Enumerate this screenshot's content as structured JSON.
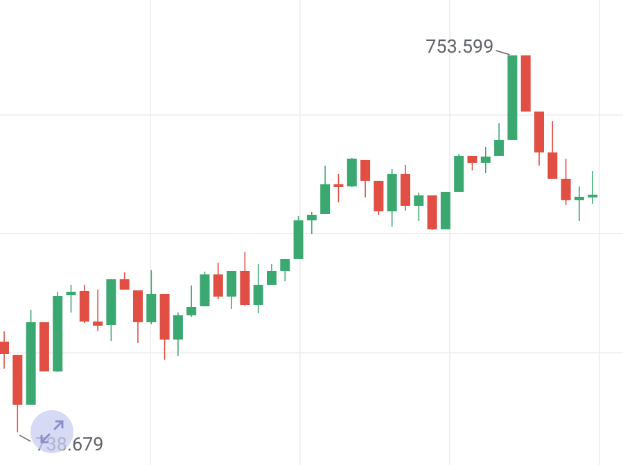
{
  "chart_data": {
    "type": "candlestick",
    "open": [
      742.272,
      741.751,
      739.776,
      743.04,
      741.092,
      744.109,
      744.274,
      743.067,
      742.93,
      744.74,
      744.301,
      743.04,
      744.164,
      742.354,
      743.314,
      743.67,
      744.932,
      744.054,
      745.069,
      743.725,
      744.521,
      745.069,
      745.535,
      747.071,
      747.318,
      748.498,
      748.415,
      749.458,
      748.635,
      747.428,
      748.909,
      747.647,
      748.059,
      746.715,
      748.196,
      749.622,
      749.348,
      749.622,
      750.253,
      753.599,
      751.377,
      749.759,
      748.717,
      747.867,
      747.977
    ],
    "high": [
      742.683,
      741.751,
      743.533,
      743.04,
      744.246,
      744.521,
      744.521,
      744.329,
      744.74,
      745.014,
      744.301,
      745.097,
      744.164,
      743.424,
      744.493,
      745.042,
      745.398,
      745.069,
      745.81,
      745.344,
      745.344,
      745.535,
      747.236,
      747.401,
      749.238,
      748.909,
      749.54,
      749.458,
      748.635,
      749.101,
      749.266,
      748.169,
      748.059,
      748.196,
      749.704,
      749.622,
      749.979,
      750.911,
      753.599,
      753.599,
      751.377,
      750.993,
      749.512,
      748.415,
      749.019
    ],
    "low": [
      741.202,
      738.679,
      739.776,
      741.092,
      741.065,
      743.424,
      743.012,
      742.683,
      742.299,
      744.329,
      742.217,
      742.957,
      741.559,
      741.696,
      743.259,
      743.67,
      743.945,
      743.561,
      743.698,
      743.396,
      744.521,
      744.658,
      745.535,
      746.523,
      747.318,
      747.785,
      748.388,
      747.977,
      747.291,
      746.825,
      747.455,
      747.044,
      746.687,
      746.715,
      748.196,
      749.046,
      748.936,
      749.622,
      750.253,
      751.377,
      749.238,
      748.717,
      747.675,
      747.044,
      747.73
    ],
    "close": [
      741.778,
      739.776,
      743.04,
      741.092,
      744.082,
      744.246,
      743.067,
      742.902,
      744.74,
      744.329,
      743.04,
      744.164,
      742.354,
      743.314,
      743.643,
      744.932,
      744.054,
      745.069,
      743.725,
      744.521,
      745.069,
      745.535,
      747.071,
      747.291,
      748.498,
      748.388,
      749.512,
      748.635,
      747.428,
      748.909,
      747.647,
      748.059,
      746.715,
      748.196,
      749.622,
      749.348,
      749.595,
      750.253,
      753.599,
      751.377,
      749.759,
      748.717,
      747.867,
      748.004,
      748.086
    ],
    "up_color": "#3aa870",
    "down_color": "#e04e44",
    "ylim": [
      737.39,
      755.79
    ],
    "yticks": [
      741.83,
      746.55,
      751.24
    ],
    "grid": true
  }
}
